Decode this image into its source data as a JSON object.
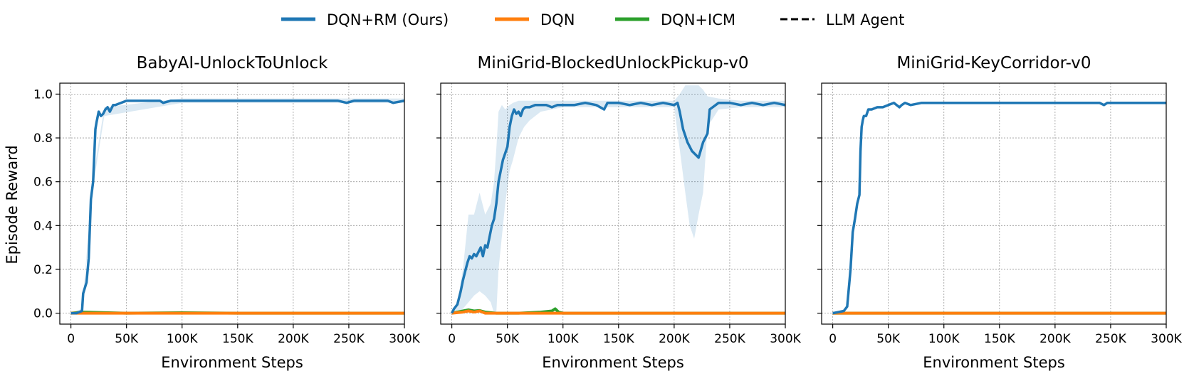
{
  "legend": {
    "items": [
      {
        "label": "DQN+RM (Ours)",
        "color": "#1f77b4",
        "style": "solid"
      },
      {
        "label": "DQN",
        "color": "#ff7f0e",
        "style": "solid"
      },
      {
        "label": "DQN+ICM",
        "color": "#2ca02c",
        "style": "solid"
      },
      {
        "label": "LLM Agent",
        "color": "#000000",
        "style": "dashed"
      }
    ],
    "placement": "top-center"
  },
  "shared": {
    "ylabel": "Episode Reward",
    "xlabel": "Environment Steps",
    "x_ticks": [
      0,
      50000,
      100000,
      150000,
      200000,
      250000,
      300000
    ],
    "x_tick_labels": [
      "0",
      "50K",
      "100K",
      "150K",
      "200K",
      "250K",
      "300K"
    ],
    "y_ticks": [
      0.0,
      0.2,
      0.4,
      0.6,
      0.8,
      1.0
    ],
    "y_tick_labels": [
      "0.0",
      "0.2",
      "0.4",
      "0.6",
      "0.8",
      "1.0"
    ],
    "xlim": [
      -10000,
      300000
    ],
    "ylim": [
      -0.05,
      1.05
    ],
    "grid": true
  },
  "chart_data": [
    {
      "type": "line",
      "title": "BabyAI-UnlockToUnlock",
      "xlabel": "Environment Steps",
      "ylabel": "Episode Reward",
      "grid": true,
      "series": [
        {
          "name": "DQN+RM (Ours)",
          "color": "#1f77b4",
          "x": [
            0,
            5000,
            10000,
            11000,
            14000,
            16000,
            18000,
            20000,
            22000,
            23000,
            25000,
            27000,
            29000,
            31000,
            33000,
            35000,
            38000,
            40000,
            45000,
            50000,
            55000,
            60000,
            70000,
            80000,
            83000,
            90000,
            100000,
            120000,
            140000,
            160000,
            180000,
            200000,
            220000,
            240000,
            248000,
            255000,
            270000,
            285000,
            290000,
            300000
          ],
          "y": [
            0.0,
            0.0,
            0.01,
            0.09,
            0.14,
            0.25,
            0.52,
            0.6,
            0.84,
            0.87,
            0.92,
            0.9,
            0.91,
            0.93,
            0.94,
            0.92,
            0.95,
            0.95,
            0.96,
            0.97,
            0.97,
            0.97,
            0.97,
            0.97,
            0.96,
            0.97,
            0.97,
            0.97,
            0.97,
            0.97,
            0.97,
            0.97,
            0.97,
            0.97,
            0.96,
            0.97,
            0.97,
            0.97,
            0.96,
            0.97
          ]
        },
        {
          "name": "DQN",
          "color": "#ff7f0e",
          "x": [
            0,
            50000,
            100000,
            150000,
            200000,
            250000,
            300000
          ],
          "y": [
            0.0,
            0.0,
            0.0,
            0.0,
            0.0,
            0.0,
            0.0
          ]
        },
        {
          "name": "DQN+ICM",
          "color": "#2ca02c",
          "x": [
            0,
            10000,
            50000,
            100000,
            150000,
            200000,
            250000,
            300000
          ],
          "y": [
            0.0,
            0.005,
            0.0,
            0.002,
            0.0,
            0.0,
            0.0,
            0.0
          ]
        }
      ],
      "bands": [
        {
          "series": "DQN+RM (Ours)",
          "color": "#1f77b4",
          "x": [
            0,
            10000,
            20000,
            30000,
            100000,
            300000
          ],
          "lower": [
            0.0,
            0.0,
            0.58,
            0.9,
            0.96,
            0.96
          ],
          "upper": [
            0.0,
            0.02,
            0.62,
            0.94,
            0.98,
            0.98
          ]
        }
      ]
    },
    {
      "type": "line",
      "title": "MiniGrid-BlockedUnlockPickup-v0",
      "xlabel": "Environment Steps",
      "ylabel": "",
      "grid": true,
      "series": [
        {
          "name": "DQN+RM (Ours)",
          "color": "#1f77b4",
          "x": [
            0,
            2000,
            5000,
            8000,
            10000,
            12000,
            14000,
            16000,
            18000,
            20000,
            22000,
            24000,
            26000,
            28000,
            30000,
            32000,
            34000,
            36000,
            38000,
            40000,
            42000,
            44000,
            46000,
            48000,
            50000,
            52000,
            54000,
            56000,
            58000,
            60000,
            62000,
            64000,
            66000,
            70000,
            75000,
            80000,
            85000,
            90000,
            95000,
            100000,
            110000,
            120000,
            130000,
            137000,
            140000,
            150000,
            160000,
            170000,
            180000,
            190000,
            200000,
            203000,
            205000,
            208000,
            212000,
            216000,
            220000,
            222000,
            226000,
            228000,
            230000,
            232000,
            240000,
            250000,
            260000,
            270000,
            280000,
            290000,
            300000
          ],
          "y": [
            0.0,
            0.02,
            0.04,
            0.1,
            0.15,
            0.19,
            0.23,
            0.26,
            0.25,
            0.27,
            0.26,
            0.28,
            0.3,
            0.26,
            0.31,
            0.3,
            0.35,
            0.4,
            0.43,
            0.5,
            0.6,
            0.65,
            0.7,
            0.73,
            0.76,
            0.85,
            0.9,
            0.93,
            0.91,
            0.92,
            0.9,
            0.93,
            0.94,
            0.94,
            0.95,
            0.95,
            0.95,
            0.94,
            0.95,
            0.95,
            0.95,
            0.96,
            0.95,
            0.93,
            0.96,
            0.96,
            0.95,
            0.96,
            0.95,
            0.96,
            0.95,
            0.96,
            0.92,
            0.84,
            0.78,
            0.74,
            0.72,
            0.71,
            0.78,
            0.8,
            0.82,
            0.93,
            0.96,
            0.96,
            0.95,
            0.96,
            0.95,
            0.96,
            0.95
          ]
        },
        {
          "name": "DQN",
          "color": "#ff7f0e",
          "x": [
            0,
            10000,
            15000,
            20000,
            25000,
            30000,
            50000,
            100000,
            200000,
            300000
          ],
          "y": [
            0.0,
            0.005,
            0.01,
            0.005,
            0.01,
            0.0,
            0.0,
            0.0,
            0.0,
            0.0
          ]
        },
        {
          "name": "DQN+ICM",
          "color": "#2ca02c",
          "x": [
            0,
            5000,
            10000,
            15000,
            20000,
            25000,
            30000,
            40000,
            60000,
            80000,
            90000,
            93000,
            96000,
            100000,
            150000,
            200000,
            300000
          ],
          "y": [
            0.0,
            0.005,
            0.01,
            0.015,
            0.01,
            0.012,
            0.005,
            0.0,
            0.0,
            0.005,
            0.01,
            0.02,
            0.005,
            0.0,
            0.0,
            0.0,
            0.0
          ]
        }
      ],
      "bands": [
        {
          "series": "DQN+RM (Ours)",
          "color": "#1f77b4",
          "x": [
            0,
            5000,
            10000,
            15000,
            20000,
            25000,
            30000,
            35000,
            38000,
            40000,
            42000,
            45000,
            48000,
            52000,
            55000,
            60000,
            65000,
            70000,
            75000,
            80000,
            90000,
            100000,
            140000,
            200000,
            205000,
            210000,
            214000,
            218000,
            222000,
            226000,
            230000,
            240000,
            260000,
            280000,
            300000
          ],
          "lower": [
            0.0,
            0.0,
            0.02,
            0.05,
            0.08,
            0.1,
            0.08,
            0.05,
            0.0,
            0.0,
            0.2,
            0.35,
            0.5,
            0.65,
            0.7,
            0.8,
            0.85,
            0.88,
            0.9,
            0.92,
            0.93,
            0.94,
            0.94,
            0.94,
            0.75,
            0.55,
            0.4,
            0.34,
            0.45,
            0.55,
            0.85,
            0.93,
            0.94,
            0.94,
            0.94
          ],
          "upper": [
            0.0,
            0.05,
            0.2,
            0.45,
            0.45,
            0.55,
            0.45,
            0.5,
            0.6,
            0.75,
            0.92,
            0.95,
            0.93,
            0.95,
            0.96,
            0.97,
            0.97,
            0.97,
            0.97,
            0.97,
            0.97,
            0.97,
            0.97,
            0.97,
            1.0,
            1.04,
            1.04,
            1.04,
            1.04,
            1.02,
            0.99,
            0.98,
            0.97,
            0.97,
            0.97
          ]
        }
      ]
    },
    {
      "type": "line",
      "title": "MiniGrid-KeyCorridor-v0",
      "xlabel": "Environment Steps",
      "ylabel": "",
      "grid": true,
      "series": [
        {
          "name": "DQN+RM (Ours)",
          "color": "#1f77b4",
          "x": [
            0,
            5000,
            10000,
            13000,
            16000,
            18000,
            20000,
            22000,
            24000,
            25000,
            26000,
            27000,
            28000,
            30000,
            32000,
            35000,
            40000,
            45000,
            50000,
            55000,
            60000,
            62000,
            65000,
            70000,
            80000,
            90000,
            100000,
            120000,
            150000,
            180000,
            210000,
            240000,
            244000,
            247000,
            270000,
            300000
          ],
          "y": [
            0.0,
            0.005,
            0.01,
            0.03,
            0.2,
            0.37,
            0.43,
            0.5,
            0.54,
            0.74,
            0.85,
            0.88,
            0.9,
            0.9,
            0.93,
            0.93,
            0.94,
            0.94,
            0.95,
            0.96,
            0.94,
            0.95,
            0.96,
            0.95,
            0.96,
            0.96,
            0.96,
            0.96,
            0.96,
            0.96,
            0.96,
            0.96,
            0.95,
            0.96,
            0.96,
            0.96
          ]
        },
        {
          "name": "DQN",
          "color": "#ff7f0e",
          "x": [
            0,
            100000,
            200000,
            300000
          ],
          "y": [
            0.0,
            0.0,
            0.0,
            0.0
          ]
        },
        {
          "name": "DQN+ICM",
          "color": "#2ca02c",
          "x": [
            0,
            100000,
            200000,
            300000
          ],
          "y": [
            0.0,
            0.0,
            0.0,
            0.0
          ]
        }
      ],
      "bands": []
    }
  ]
}
